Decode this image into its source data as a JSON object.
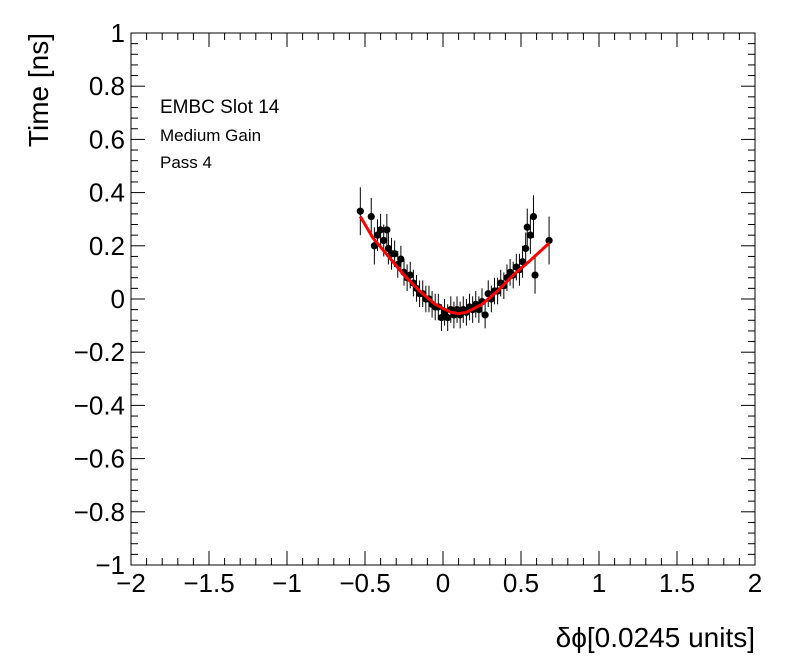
{
  "chart_data": {
    "type": "scatter",
    "title": "",
    "xlabel": "δϕ[0.0245 units]",
    "ylabel": "Time [ns]",
    "xlim": [
      -2,
      2
    ],
    "ylim": [
      -1,
      1
    ],
    "x_ticks": [
      -2,
      -1.5,
      -1,
      -0.5,
      0,
      0.5,
      1,
      1.5,
      2
    ],
    "x_tick_labels": [
      "−2",
      "−1.5",
      "−1",
      "−0.5",
      "0",
      "0.5",
      "1",
      "1.5",
      "2"
    ],
    "y_ticks": [
      -1,
      -0.8,
      -0.6,
      -0.4,
      -0.2,
      0,
      0.2,
      0.4,
      0.6,
      0.8,
      1
    ],
    "y_tick_labels": [
      "−1",
      "−0.8",
      "−0.6",
      "−0.4",
      "−0.2",
      "0",
      "0.2",
      "0.4",
      "0.6",
      "0.8",
      "1"
    ],
    "grid": false,
    "legend": "none",
    "annotations": [
      "EMBC Slot 14",
      "Medium Gain",
      "Pass 4"
    ],
    "series": [
      {
        "kind": "points-with-errors",
        "color": "#000000",
        "points": [
          {
            "x": -0.53,
            "y": 0.33,
            "err": 0.09
          },
          {
            "x": -0.46,
            "y": 0.31,
            "err": 0.07
          },
          {
            "x": -0.44,
            "y": 0.2,
            "err": 0.07
          },
          {
            "x": -0.42,
            "y": 0.24,
            "err": 0.06
          },
          {
            "x": -0.4,
            "y": 0.26,
            "err": 0.06
          },
          {
            "x": -0.38,
            "y": 0.22,
            "err": 0.06
          },
          {
            "x": -0.36,
            "y": 0.26,
            "err": 0.06
          },
          {
            "x": -0.35,
            "y": 0.19,
            "err": 0.06
          },
          {
            "x": -0.33,
            "y": 0.17,
            "err": 0.06
          },
          {
            "x": -0.31,
            "y": 0.17,
            "err": 0.05
          },
          {
            "x": -0.29,
            "y": 0.13,
            "err": 0.05
          },
          {
            "x": -0.27,
            "y": 0.15,
            "err": 0.05
          },
          {
            "x": -0.25,
            "y": 0.1,
            "err": 0.05
          },
          {
            "x": -0.23,
            "y": 0.08,
            "err": 0.05
          },
          {
            "x": -0.21,
            "y": 0.09,
            "err": 0.05
          },
          {
            "x": -0.19,
            "y": 0.06,
            "err": 0.05
          },
          {
            "x": -0.17,
            "y": 0.04,
            "err": 0.05
          },
          {
            "x": -0.15,
            "y": 0.02,
            "err": 0.05
          },
          {
            "x": -0.13,
            "y": 0.02,
            "err": 0.05
          },
          {
            "x": -0.11,
            "y": 0.0,
            "err": 0.05
          },
          {
            "x": -0.09,
            "y": 0.0,
            "err": 0.05
          },
          {
            "x": -0.07,
            "y": -0.02,
            "err": 0.05
          },
          {
            "x": -0.05,
            "y": -0.03,
            "err": 0.05
          },
          {
            "x": -0.03,
            "y": -0.03,
            "err": 0.05
          },
          {
            "x": -0.01,
            "y": -0.07,
            "err": 0.05
          },
          {
            "x": 0.01,
            "y": -0.05,
            "err": 0.05
          },
          {
            "x": 0.03,
            "y": -0.07,
            "err": 0.05
          },
          {
            "x": 0.05,
            "y": -0.04,
            "err": 0.05
          },
          {
            "x": 0.07,
            "y": -0.06,
            "err": 0.05
          },
          {
            "x": 0.09,
            "y": -0.04,
            "err": 0.05
          },
          {
            "x": 0.11,
            "y": -0.06,
            "err": 0.05
          },
          {
            "x": 0.13,
            "y": -0.04,
            "err": 0.05
          },
          {
            "x": 0.15,
            "y": -0.05,
            "err": 0.05
          },
          {
            "x": 0.17,
            "y": -0.03,
            "err": 0.05
          },
          {
            "x": 0.19,
            "y": -0.04,
            "err": 0.05
          },
          {
            "x": 0.21,
            "y": -0.02,
            "err": 0.05
          },
          {
            "x": 0.23,
            "y": -0.04,
            "err": 0.05
          },
          {
            "x": 0.25,
            "y": -0.01,
            "err": 0.05
          },
          {
            "x": 0.27,
            "y": -0.06,
            "err": 0.05
          },
          {
            "x": 0.29,
            "y": 0.02,
            "err": 0.05
          },
          {
            "x": 0.31,
            "y": 0.0,
            "err": 0.05
          },
          {
            "x": 0.33,
            "y": 0.03,
            "err": 0.05
          },
          {
            "x": 0.35,
            "y": 0.03,
            "err": 0.05
          },
          {
            "x": 0.37,
            "y": 0.06,
            "err": 0.05
          },
          {
            "x": 0.39,
            "y": 0.05,
            "err": 0.05
          },
          {
            "x": 0.41,
            "y": 0.08,
            "err": 0.05
          },
          {
            "x": 0.43,
            "y": 0.1,
            "err": 0.05
          },
          {
            "x": 0.45,
            "y": 0.09,
            "err": 0.05
          },
          {
            "x": 0.47,
            "y": 0.12,
            "err": 0.05
          },
          {
            "x": 0.49,
            "y": 0.11,
            "err": 0.06
          },
          {
            "x": 0.51,
            "y": 0.14,
            "err": 0.06
          },
          {
            "x": 0.53,
            "y": 0.19,
            "err": 0.06
          },
          {
            "x": 0.54,
            "y": 0.27,
            "err": 0.07
          },
          {
            "x": 0.56,
            "y": 0.24,
            "err": 0.07
          },
          {
            "x": 0.58,
            "y": 0.31,
            "err": 0.08
          },
          {
            "x": 0.59,
            "y": 0.09,
            "err": 0.07
          },
          {
            "x": 0.68,
            "y": 0.22,
            "err": 0.09
          }
        ]
      },
      {
        "kind": "fit-curve",
        "color": "#ff0000",
        "points": [
          {
            "x": -0.53,
            "y": 0.31
          },
          {
            "x": -0.45,
            "y": 0.23
          },
          {
            "x": -0.35,
            "y": 0.16
          },
          {
            "x": -0.25,
            "y": 0.09
          },
          {
            "x": -0.15,
            "y": 0.03
          },
          {
            "x": -0.05,
            "y": -0.02
          },
          {
            "x": 0.05,
            "y": -0.05
          },
          {
            "x": 0.1,
            "y": -0.055
          },
          {
            "x": 0.15,
            "y": -0.05
          },
          {
            "x": 0.25,
            "y": -0.02
          },
          {
            "x": 0.35,
            "y": 0.03
          },
          {
            "x": 0.45,
            "y": 0.09
          },
          {
            "x": 0.55,
            "y": 0.14
          },
          {
            "x": 0.68,
            "y": 0.21
          }
        ]
      }
    ]
  }
}
